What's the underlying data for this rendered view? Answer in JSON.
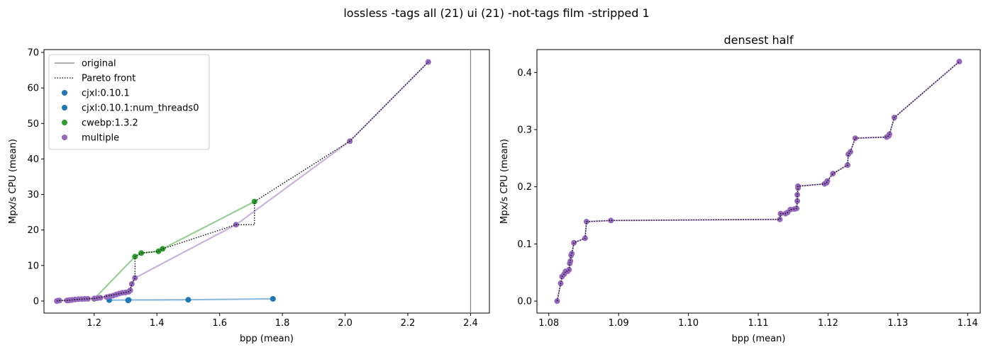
{
  "suptitle": "lossless -tags all (21) ui (21) -not-tags film -stripped 1",
  "colors": {
    "cjxl": "#1f77b4",
    "cjxl_light": "#8dbbdc",
    "cwebp": "#2ca02c",
    "cwebp_light": "#98d095",
    "multiple": "#9467bd",
    "multiple_light": "#c9b3de",
    "original": "#808080",
    "pareto": "#000000"
  },
  "chart_data": [
    {
      "type": "scatter",
      "title": "",
      "xlabel": "bpp (mean)",
      "ylabel": "Mpx/s CPU (mean)",
      "xlim": [
        1.04,
        2.46
      ],
      "ylim": [
        -3.4,
        70.8
      ],
      "xticks": [
        "1.2",
        "1.4",
        "1.6",
        "1.8",
        "2.0",
        "2.2",
        "2.4"
      ],
      "yticks": [
        "0",
        "10",
        "20",
        "30",
        "40",
        "50",
        "60",
        "70"
      ],
      "grid": false,
      "legend_position": "upper-left",
      "legend": [
        "original",
        "Pareto front",
        "cjxl:0.10.1",
        "cjxl:0.10.1:num_threads0",
        "cwebp:1.3.2",
        "multiple"
      ],
      "original_x": 2.4,
      "series": [
        {
          "name": "cjxl:0.10.1",
          "color_key": "cjxl",
          "line_key": "cjxl_light",
          "x": [
            1.248,
            1.31,
            1.5,
            1.77
          ],
          "y": [
            0.25,
            0.3,
            0.35,
            0.6
          ]
        },
        {
          "name": "cjxl:0.10.1:num_threads0",
          "color_key": "cjxl",
          "line_key": "cjxl_light",
          "x": [
            1.308
          ],
          "y": [
            0.2
          ]
        },
        {
          "name": "cwebp:1.3.2",
          "color_key": "cwebp",
          "line_key": "cwebp_light",
          "x": [
            1.2,
            1.33,
            1.35,
            1.405,
            1.418,
            1.711
          ],
          "y": [
            0.6,
            12.5,
            13.5,
            14.0,
            14.7,
            28.0
          ]
        },
        {
          "name": "multiple",
          "color_key": "multiple",
          "line_key": "multiple_light",
          "x": [
            1.081,
            1.085,
            1.089,
            1.113,
            1.116,
            1.12,
            1.123,
            1.128,
            1.13,
            1.139,
            1.15,
            1.16,
            1.17,
            1.18,
            1.2,
            1.21,
            1.22,
            1.24,
            1.25,
            1.26,
            1.27,
            1.28,
            1.29,
            1.3,
            1.31,
            1.315,
            1.32,
            1.33,
            1.652,
            2.015,
            2.265
          ],
          "y": [
            0.0,
            0.11,
            0.14,
            0.15,
            0.2,
            0.21,
            0.26,
            0.29,
            0.32,
            0.42,
            0.5,
            0.55,
            0.6,
            0.6,
            0.7,
            0.8,
            0.9,
            1.1,
            1.3,
            1.5,
            1.8,
            2.1,
            2.3,
            2.4,
            2.6,
            3.0,
            4.8,
            6.5,
            21.5,
            45.0,
            67.3
          ]
        }
      ],
      "pareto_front": {
        "x": [
          1.081,
          1.085,
          1.089,
          1.113,
          1.116,
          1.12,
          1.123,
          1.128,
          1.13,
          1.139,
          1.2,
          1.3,
          1.31,
          1.315,
          1.32,
          1.33,
          1.33,
          1.35,
          1.405,
          1.418,
          1.652,
          1.711,
          1.711,
          2.015,
          2.265
        ],
        "y": [
          0.0,
          0.11,
          0.14,
          0.15,
          0.2,
          0.21,
          0.26,
          0.29,
          0.32,
          0.42,
          0.7,
          2.4,
          2.6,
          3.0,
          4.8,
          6.5,
          12.5,
          13.5,
          14.0,
          14.7,
          21.5,
          21.5,
          28.0,
          45.0,
          67.3
        ]
      }
    },
    {
      "type": "scatter",
      "title": "densest half",
      "xlabel": "bpp (mean)",
      "ylabel": "Mpx/s CPU (mean)",
      "xlim": [
        1.0783,
        1.1418
      ],
      "ylim": [
        -0.021,
        0.44
      ],
      "xticks": [
        "1.08",
        "1.09",
        "1.10",
        "1.11",
        "1.12",
        "1.13",
        "1.14"
      ],
      "yticks": [
        "0.0",
        "0.1",
        "0.2",
        "0.3",
        "0.4"
      ],
      "grid": false,
      "series": [
        {
          "name": "multiple",
          "color_key": "multiple",
          "line_key": "multiple_light",
          "x": [
            1.0812,
            1.0817,
            1.0819,
            1.0822,
            1.0824,
            1.0827,
            1.0829,
            1.083,
            1.0831,
            1.0832,
            1.0833,
            1.0836,
            1.0852,
            1.0854,
            1.0889,
            1.1131,
            1.1132,
            1.1139,
            1.1142,
            1.1146,
            1.1152,
            1.1155,
            1.1156,
            1.1156,
            1.1157,
            1.1157,
            1.1195,
            1.1198,
            1.1199,
            1.1207,
            1.1228,
            1.1229,
            1.1232,
            1.1239,
            1.1284,
            1.1287,
            1.1288,
            1.1295,
            1.1388
          ],
          "y": [
            0.0,
            0.031,
            0.043,
            0.047,
            0.052,
            0.052,
            0.055,
            0.066,
            0.07,
            0.08,
            0.083,
            0.102,
            0.11,
            0.139,
            0.141,
            0.143,
            0.153,
            0.153,
            0.155,
            0.16,
            0.161,
            0.162,
            0.175,
            0.186,
            0.198,
            0.201,
            0.205,
            0.207,
            0.21,
            0.223,
            0.238,
            0.257,
            0.261,
            0.285,
            0.287,
            0.289,
            0.292,
            0.321,
            0.419
          ]
        }
      ],
      "pareto_front": {
        "x": [
          1.0812,
          1.0817,
          1.0819,
          1.0822,
          1.0824,
          1.0827,
          1.0829,
          1.083,
          1.0831,
          1.0832,
          1.0833,
          1.0836,
          1.0852,
          1.0854,
          1.0889,
          1.1131,
          1.1132,
          1.1139,
          1.1142,
          1.1146,
          1.1152,
          1.1155,
          1.1156,
          1.1156,
          1.1157,
          1.1157,
          1.1195,
          1.1198,
          1.1199,
          1.1207,
          1.1228,
          1.1229,
          1.1232,
          1.1239,
          1.1284,
          1.1287,
          1.1288,
          1.1295,
          1.1388
        ],
        "y": [
          0.0,
          0.031,
          0.043,
          0.047,
          0.052,
          0.052,
          0.055,
          0.066,
          0.07,
          0.08,
          0.083,
          0.102,
          0.11,
          0.139,
          0.141,
          0.143,
          0.153,
          0.153,
          0.155,
          0.16,
          0.161,
          0.162,
          0.175,
          0.186,
          0.198,
          0.201,
          0.205,
          0.207,
          0.21,
          0.223,
          0.238,
          0.257,
          0.261,
          0.285,
          0.287,
          0.289,
          0.292,
          0.321,
          0.419
        ]
      }
    }
  ]
}
